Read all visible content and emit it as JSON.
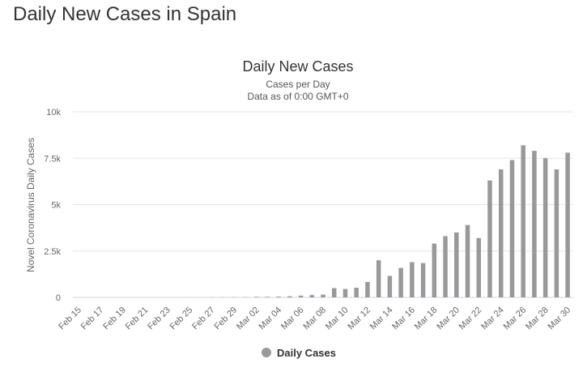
{
  "page": {
    "heading": "Daily New Cases in Spain"
  },
  "chart_data": {
    "type": "bar",
    "title": "Daily New Cases",
    "subtitle_lines": [
      "Cases per Day",
      "Data as of 0:00 GMT+0"
    ],
    "xlabel": "",
    "ylabel": "Novel Coronavirus Daily Cases",
    "ylim": [
      0,
      10000
    ],
    "yticks": [
      0,
      2500,
      5000,
      7500,
      10000
    ],
    "ytick_labels": [
      "0",
      "2.5k",
      "5k",
      "7.5k",
      "10k"
    ],
    "categories": [
      "Feb 15",
      "Feb 16",
      "Feb 17",
      "Feb 18",
      "Feb 19",
      "Feb 20",
      "Feb 21",
      "Feb 22",
      "Feb 23",
      "Feb 24",
      "Feb 25",
      "Feb 26",
      "Feb 27",
      "Feb 28",
      "Feb 29",
      "Mar 01",
      "Mar 02",
      "Mar 03",
      "Mar 04",
      "Mar 05",
      "Mar 06",
      "Mar 07",
      "Mar 08",
      "Mar 09",
      "Mar 10",
      "Mar 11",
      "Mar 12",
      "Mar 13",
      "Mar 14",
      "Mar 15",
      "Mar 16",
      "Mar 17",
      "Mar 18",
      "Mar 19",
      "Mar 20",
      "Mar 21",
      "Mar 22",
      "Mar 23",
      "Mar 24",
      "Mar 25",
      "Mar 26",
      "Mar 27",
      "Mar 28",
      "Mar 29",
      "Mar 30"
    ],
    "xtick_labels": [
      "Feb 15",
      "Feb 17",
      "Feb 19",
      "Feb 21",
      "Feb 23",
      "Feb 25",
      "Feb 27",
      "Feb 29",
      "Mar 02",
      "Mar 04",
      "Mar 06",
      "Mar 08",
      "Mar 10",
      "Mar 12",
      "Mar 14",
      "Mar 16",
      "Mar 18",
      "Mar 20",
      "Mar 22",
      "Mar 24",
      "Mar 26",
      "Mar 28",
      "Mar 30"
    ],
    "series": [
      {
        "name": "Daily Cases",
        "color": "#999999",
        "values": [
          0,
          0,
          0,
          0,
          0,
          0,
          0,
          0,
          0,
          0,
          4,
          2,
          7,
          8,
          12,
          17,
          29,
          33,
          45,
          60,
          97,
          125,
          151,
          500,
          455,
          520,
          830,
          2000,
          1160,
          1590,
          1900,
          1850,
          2900,
          3300,
          3500,
          3900,
          3200,
          6300,
          6900,
          7400,
          8200,
          7900,
          7500,
          6900,
          7800
        ]
      }
    ],
    "grid": true,
    "legend": "bottom"
  }
}
